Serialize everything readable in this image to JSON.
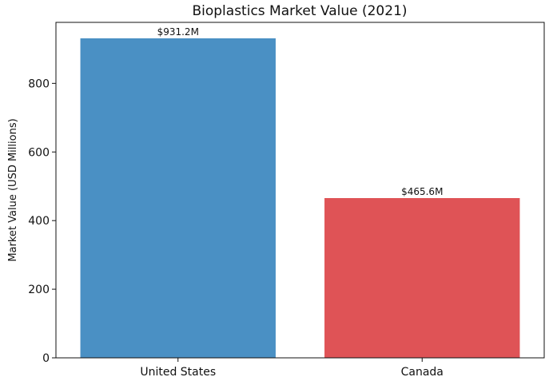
{
  "chart_data": {
    "type": "bar",
    "title": "Bioplastics Market Value (2021)",
    "xlabel": "",
    "ylabel": "Market Value (USD Millions)",
    "categories": [
      "United States",
      "Canada"
    ],
    "values": [
      931.2,
      465.6
    ],
    "data_labels": [
      "$931.2M",
      "$465.6M"
    ],
    "bar_colors": [
      "#4a90c4",
      "#df5356"
    ],
    "ylim": [
      0,
      977.76
    ],
    "yticks": [
      0,
      200,
      400,
      600,
      800
    ],
    "grid": false,
    "legend": "none"
  }
}
